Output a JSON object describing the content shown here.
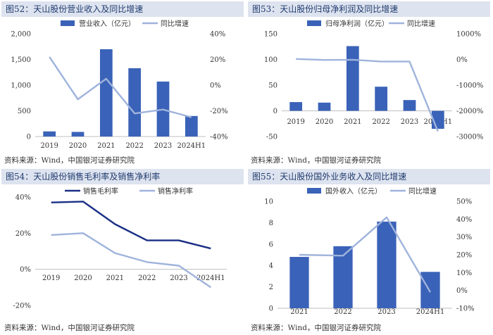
{
  "panels": [
    {
      "figure": "图52：",
      "title": "天山股份营业收入及同比增速",
      "source": "资料来源：Wind，中国银河证券研究院",
      "chart_data": {
        "type": "bar",
        "categories": [
          "2019",
          "2020",
          "2021",
          "2022",
          "2023",
          "2024H1"
        ],
        "series": [
          {
            "name": "营业收入（亿元）",
            "type": "bar",
            "axis": "left",
            "values": [
              100,
              90,
              1700,
              1330,
              1070,
              400
            ]
          },
          {
            "name": "同比增速",
            "type": "line",
            "axis": "right",
            "values": [
              22,
              -11,
              5,
              -22,
              -19,
              -25
            ]
          }
        ],
        "left_axis": {
          "min": 0,
          "max": 2000,
          "ticks": [
            0,
            500,
            1000,
            1500,
            2000
          ],
          "labels": [
            "0",
            "500",
            "1,000",
            "1,500",
            "2,000"
          ]
        },
        "right_axis": {
          "min": -40,
          "max": 40,
          "ticks": [
            -40,
            -20,
            0,
            20,
            40
          ],
          "labels": [
            "-40%",
            "-20%",
            "0%",
            "20%",
            "40%"
          ]
        }
      }
    },
    {
      "figure": "图53：",
      "title": "天山股份归母净利润及同比增速",
      "source": "资料来源：Wind，中国银河证券研究院",
      "chart_data": {
        "type": "bar",
        "categories": [
          "2019",
          "2020",
          "2021",
          "2022",
          "2023",
          "2024H1"
        ],
        "series": [
          {
            "name": "归母净利润（亿元）",
            "type": "bar",
            "axis": "left",
            "values": [
              17,
              16,
              126,
              47,
              21,
              -35
            ]
          },
          {
            "name": "同比增速",
            "type": "line",
            "axis": "right",
            "values": [
              20,
              -20,
              -10,
              -80,
              -80,
              -2800
            ]
          }
        ],
        "left_axis": {
          "min": -50,
          "max": 150,
          "ticks": [
            -50,
            0,
            50,
            100,
            150
          ],
          "labels": [
            "-50",
            "0",
            "50",
            "100",
            "150"
          ]
        },
        "right_axis": {
          "min": -3000,
          "max": 1000,
          "ticks": [
            -3000,
            -2000,
            -1000,
            0,
            1000
          ],
          "labels": [
            "-3000%",
            "-2000%",
            "-1000%",
            "0%",
            "1000%"
          ]
        }
      }
    },
    {
      "figure": "图54：",
      "title": "天山股份销售毛利率及销售净利率",
      "source": "资料来源：Wind，中国银河证券研究院",
      "chart_data": {
        "type": "line",
        "categories": [
          "2019",
          "2020",
          "2021",
          "2022",
          "2023",
          "2024H1"
        ],
        "series": [
          {
            "name": "销售毛利率",
            "values": [
              37,
              37.5,
              25,
              16,
              16,
              11.5
            ]
          },
          {
            "name": "销售净利率",
            "values": [
              19,
              20,
              9,
              4,
              2,
              -10
            ]
          }
        ],
        "left_axis": {
          "min": -20,
          "max": 40,
          "ticks": [
            -20,
            0,
            20,
            40
          ],
          "labels": [
            "-20%",
            "0%",
            "20%",
            "40%"
          ]
        }
      }
    },
    {
      "figure": "图55：",
      "title": "天山股份国外业务收入及同比增速",
      "source": "资料来源：Wind，中国银河证券研究院",
      "chart_data": {
        "type": "bar",
        "categories": [
          "2021",
          "2022",
          "2023",
          "2024H1"
        ],
        "series": [
          {
            "name": "国外收入（亿元）",
            "type": "bar",
            "axis": "left",
            "values": [
              4.8,
              5.8,
              8.1,
              3.4
            ]
          },
          {
            "name": "同比增速",
            "type": "line",
            "axis": "right",
            "values": [
              20,
              19.5,
              41,
              -1
            ]
          }
        ],
        "left_axis": {
          "min": 0,
          "max": 10,
          "ticks": [
            0,
            2,
            4,
            6,
            8,
            10
          ],
          "labels": [
            "0",
            "2",
            "4",
            "6",
            "8",
            "10"
          ]
        },
        "right_axis": {
          "min": -10,
          "max": 50,
          "ticks": [
            -10,
            0,
            10,
            20,
            30,
            40,
            50
          ],
          "labels": [
            "-10%",
            "0%",
            "10%",
            "20%",
            "30%",
            "40%",
            "50%"
          ]
        }
      }
    }
  ],
  "colors": {
    "bar": "#3a62b8",
    "line_light": "#9fb3dc",
    "line_dark": "#1a2f86",
    "title_bg": "#dde3ef",
    "title_text": "#1f3a6e"
  }
}
